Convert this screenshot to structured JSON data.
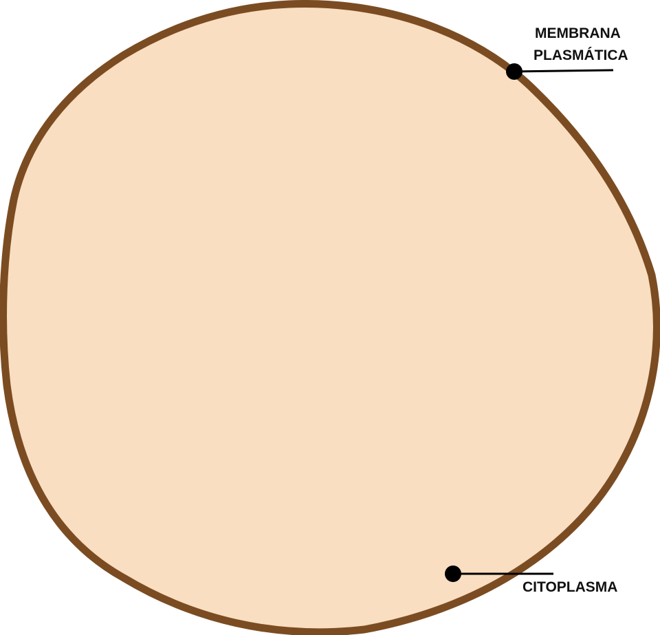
{
  "diagram": {
    "labels": {
      "membrane_line1": "MEMBRANA",
      "membrane_line2": "PLASMÁTICA",
      "cytoplasm": "CITOPLASMA"
    },
    "colors": {
      "cytoplasm_fill": "#f9dec1",
      "membrane_stroke": "#7b4c22",
      "pointer": "#000000",
      "background": "#ffffff"
    }
  }
}
